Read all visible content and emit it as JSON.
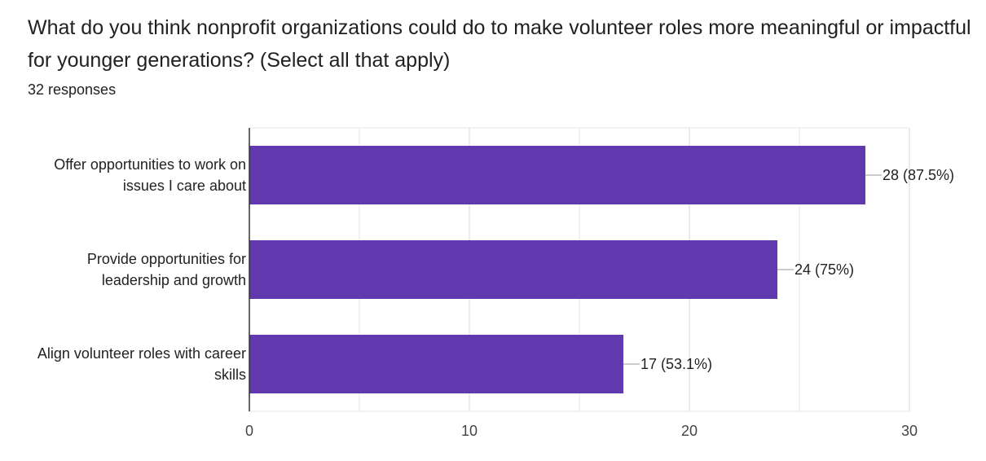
{
  "question": {
    "title": "What do you think nonprofit organizations could do to make volunteer roles more meaningful or impactful for younger generations? (Select all that apply)",
    "responses": "32 responses"
  },
  "colors": {
    "bar": "#6039AE",
    "grid": "#e6e6e6",
    "axis": "#333333"
  },
  "chart_data": {
    "type": "bar",
    "orientation": "horizontal",
    "categories": [
      [
        "Offer opportunities to work on",
        "issues I care about"
      ],
      [
        "Provide opportunities for",
        "leadership and growth"
      ],
      [
        "Align volunteer roles with career",
        "skills"
      ]
    ],
    "values": [
      28,
      24,
      17
    ],
    "data_labels": [
      "28 (87.5%)",
      "24 (75%)",
      "17 (53.1%)"
    ],
    "xlim": [
      0,
      30
    ],
    "xticks": [
      0,
      10,
      20,
      30
    ],
    "xtick_labels": [
      "0",
      "10",
      "20",
      "30"
    ],
    "minor_gridlines": [
      5,
      15,
      25
    ],
    "title": "",
    "xlabel": "",
    "ylabel": ""
  }
}
